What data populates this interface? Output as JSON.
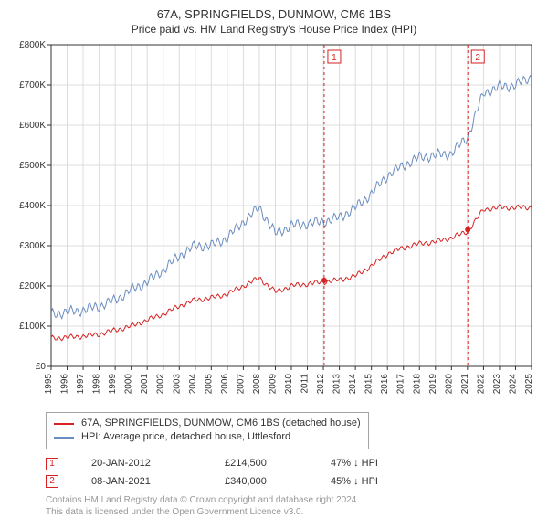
{
  "title": "67A, SPRINGFIELDS, DUNMOW, CM6 1BS",
  "subtitle": "Price paid vs. HM Land Registry's House Price Index (HPI)",
  "chart": {
    "type": "line",
    "background_color": "#ffffff",
    "grid_color": "#dcdcdc",
    "axis_color": "#333333",
    "label_fontsize": 10,
    "ylim": [
      0,
      800
    ],
    "ytick_step": 100,
    "ytick_labels": [
      "£0",
      "£100K",
      "£200K",
      "£300K",
      "£400K",
      "£500K",
      "£600K",
      "£700K",
      "£800K"
    ],
    "x_years": [
      1995,
      1996,
      1997,
      1998,
      1999,
      2000,
      2001,
      2002,
      2003,
      2004,
      2005,
      2006,
      2007,
      2008,
      2009,
      2010,
      2011,
      2012,
      2013,
      2014,
      2015,
      2016,
      2017,
      2018,
      2019,
      2020,
      2021,
      2022,
      2023,
      2024,
      2025
    ],
    "hpi_color": "#6b8dbf",
    "price_color": "#d62222",
    "line_width": 1.0,
    "hpi_values": [
      130,
      135,
      140,
      150,
      165,
      190,
      210,
      240,
      275,
      300,
      300,
      320,
      360,
      395,
      330,
      350,
      355,
      360,
      370,
      395,
      430,
      475,
      500,
      520,
      525,
      530,
      570,
      680,
      695,
      700,
      720
    ],
    "price_values": [
      70,
      72,
      75,
      80,
      90,
      100,
      115,
      130,
      150,
      165,
      170,
      180,
      200,
      220,
      185,
      200,
      205,
      210,
      215,
      225,
      250,
      280,
      295,
      305,
      310,
      320,
      335,
      390,
      395,
      395,
      395
    ],
    "events": [
      {
        "marker": "1",
        "year_frac": 2012.05,
        "price_y": 214,
        "color": "#d62222"
      },
      {
        "marker": "2",
        "year_frac": 2021.02,
        "price_y": 340,
        "color": "#d62222"
      }
    ]
  },
  "legend": [
    {
      "color": "#d62222",
      "label": "67A, SPRINGFIELDS, DUNMOW, CM6 1BS (detached house)"
    },
    {
      "color": "#6b8dbf",
      "label": "HPI: Average price, detached house, Uttlesford"
    }
  ],
  "event_rows": [
    {
      "marker": "1",
      "color": "#d62222",
      "date": "20-JAN-2012",
      "price": "£214,500",
      "hpi": "47% ↓ HPI"
    },
    {
      "marker": "2",
      "color": "#d62222",
      "date": "08-JAN-2021",
      "price": "£340,000",
      "hpi": "45% ↓ HPI"
    }
  ],
  "footer": {
    "line1": "Contains HM Land Registry data © Crown copyright and database right 2024.",
    "line2": "This data is licensed under the Open Government Licence v3.0.",
    "color": "#989898"
  }
}
